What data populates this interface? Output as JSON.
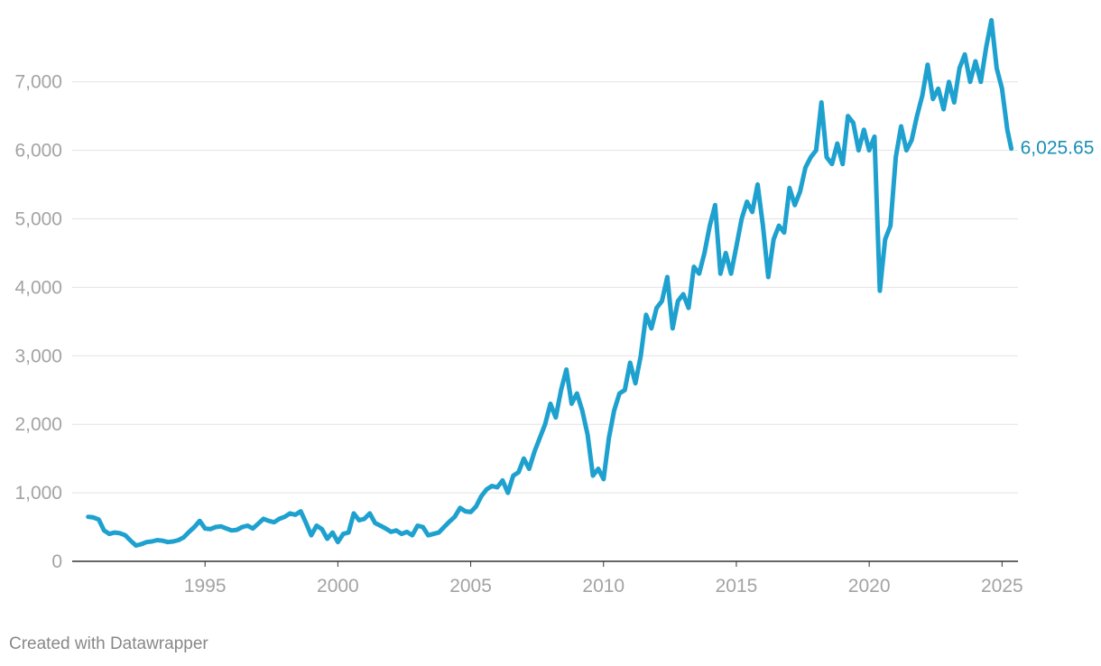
{
  "chart_data": {
    "type": "line",
    "title": "",
    "xlabel": "",
    "ylabel": "",
    "xlim": [
      1990.0,
      2025.6
    ],
    "ylim": [
      0,
      7500
    ],
    "grid": "horizontal",
    "y_ticks": [
      0,
      1000,
      2000,
      3000,
      4000,
      5000,
      6000,
      7000
    ],
    "y_tick_labels": [
      "0",
      "1,000",
      "2,000",
      "3,000",
      "4,000",
      "5,000",
      "6,000",
      "7,000"
    ],
    "x_ticks": [
      1995,
      2000,
      2005,
      2010,
      2015,
      2020,
      2025
    ],
    "x_tick_labels": [
      "1995",
      "2000",
      "2005",
      "2010",
      "2015",
      "2020",
      "2025"
    ],
    "series": [
      {
        "color": "#1ea1cf",
        "points": [
          [
            1990.6,
            650
          ],
          [
            1990.8,
            640
          ],
          [
            1991.0,
            610
          ],
          [
            1991.2,
            450
          ],
          [
            1991.4,
            400
          ],
          [
            1991.6,
            420
          ],
          [
            1991.8,
            410
          ],
          [
            1992.0,
            380
          ],
          [
            1992.2,
            300
          ],
          [
            1992.4,
            230
          ],
          [
            1992.6,
            250
          ],
          [
            1992.8,
            280
          ],
          [
            1993.0,
            290
          ],
          [
            1993.2,
            310
          ],
          [
            1993.4,
            300
          ],
          [
            1993.6,
            280
          ],
          [
            1993.8,
            290
          ],
          [
            1994.0,
            310
          ],
          [
            1994.2,
            350
          ],
          [
            1994.4,
            430
          ],
          [
            1994.6,
            500
          ],
          [
            1994.8,
            590
          ],
          [
            1995.0,
            480
          ],
          [
            1995.2,
            470
          ],
          [
            1995.4,
            500
          ],
          [
            1995.6,
            510
          ],
          [
            1995.8,
            480
          ],
          [
            1996.0,
            450
          ],
          [
            1996.2,
            460
          ],
          [
            1996.4,
            500
          ],
          [
            1996.6,
            520
          ],
          [
            1996.8,
            480
          ],
          [
            1997.0,
            550
          ],
          [
            1997.2,
            620
          ],
          [
            1997.4,
            590
          ],
          [
            1997.6,
            570
          ],
          [
            1997.8,
            620
          ],
          [
            1998.0,
            650
          ],
          [
            1998.2,
            700
          ],
          [
            1998.4,
            680
          ],
          [
            1998.6,
            730
          ],
          [
            1998.8,
            560
          ],
          [
            1999.0,
            380
          ],
          [
            1999.2,
            520
          ],
          [
            1999.4,
            470
          ],
          [
            1999.6,
            330
          ],
          [
            1999.8,
            420
          ],
          [
            2000.0,
            280
          ],
          [
            2000.2,
            400
          ],
          [
            2000.4,
            420
          ],
          [
            2000.6,
            700
          ],
          [
            2000.8,
            600
          ],
          [
            2001.0,
            620
          ],
          [
            2001.2,
            700
          ],
          [
            2001.4,
            560
          ],
          [
            2001.6,
            520
          ],
          [
            2001.8,
            480
          ],
          [
            2002.0,
            430
          ],
          [
            2002.2,
            450
          ],
          [
            2002.4,
            400
          ],
          [
            2002.6,
            430
          ],
          [
            2002.8,
            380
          ],
          [
            2003.0,
            520
          ],
          [
            2003.2,
            500
          ],
          [
            2003.4,
            380
          ],
          [
            2003.6,
            400
          ],
          [
            2003.8,
            420
          ],
          [
            2004.0,
            500
          ],
          [
            2004.2,
            580
          ],
          [
            2004.4,
            650
          ],
          [
            2004.6,
            780
          ],
          [
            2004.8,
            730
          ],
          [
            2005.0,
            720
          ],
          [
            2005.2,
            800
          ],
          [
            2005.4,
            950
          ],
          [
            2005.6,
            1050
          ],
          [
            2005.8,
            1100
          ],
          [
            2006.0,
            1080
          ],
          [
            2006.2,
            1180
          ],
          [
            2006.4,
            1000
          ],
          [
            2006.6,
            1250
          ],
          [
            2006.8,
            1300
          ],
          [
            2007.0,
            1500
          ],
          [
            2007.2,
            1350
          ],
          [
            2007.4,
            1600
          ],
          [
            2007.6,
            1800
          ],
          [
            2007.8,
            2000
          ],
          [
            2008.0,
            2300
          ],
          [
            2008.2,
            2100
          ],
          [
            2008.4,
            2500
          ],
          [
            2008.6,
            2800
          ],
          [
            2008.8,
            2300
          ],
          [
            2009.0,
            2450
          ],
          [
            2009.2,
            2200
          ],
          [
            2009.4,
            1850
          ],
          [
            2009.6,
            1250
          ],
          [
            2009.8,
            1350
          ],
          [
            2010.0,
            1200
          ],
          [
            2010.2,
            1800
          ],
          [
            2010.4,
            2200
          ],
          [
            2010.6,
            2450
          ],
          [
            2010.8,
            2500
          ],
          [
            2011.0,
            2900
          ],
          [
            2011.2,
            2600
          ],
          [
            2011.4,
            3000
          ],
          [
            2011.6,
            3600
          ],
          [
            2011.8,
            3400
          ],
          [
            2012.0,
            3700
          ],
          [
            2012.2,
            3800
          ],
          [
            2012.4,
            4150
          ],
          [
            2012.6,
            3400
          ],
          [
            2012.8,
            3800
          ],
          [
            2013.0,
            3900
          ],
          [
            2013.2,
            3700
          ],
          [
            2013.4,
            4300
          ],
          [
            2013.6,
            4200
          ],
          [
            2013.8,
            4500
          ],
          [
            2014.0,
            4900
          ],
          [
            2014.2,
            5200
          ],
          [
            2014.4,
            4200
          ],
          [
            2014.6,
            4500
          ],
          [
            2014.8,
            4200
          ],
          [
            2015.0,
            4600
          ],
          [
            2015.2,
            5000
          ],
          [
            2015.4,
            5250
          ],
          [
            2015.6,
            5100
          ],
          [
            2015.8,
            5500
          ],
          [
            2016.0,
            4900
          ],
          [
            2016.2,
            4150
          ],
          [
            2016.4,
            4700
          ],
          [
            2016.6,
            4900
          ],
          [
            2016.8,
            4800
          ],
          [
            2017.0,
            5450
          ],
          [
            2017.2,
            5200
          ],
          [
            2017.4,
            5400
          ],
          [
            2017.6,
            5750
          ],
          [
            2017.8,
            5900
          ],
          [
            2018.0,
            6000
          ],
          [
            2018.2,
            6700
          ],
          [
            2018.4,
            5900
          ],
          [
            2018.6,
            5800
          ],
          [
            2018.8,
            6100
          ],
          [
            2019.0,
            5800
          ],
          [
            2019.2,
            6500
          ],
          [
            2019.4,
            6400
          ],
          [
            2019.6,
            6000
          ],
          [
            2019.8,
            6300
          ],
          [
            2020.0,
            6000
          ],
          [
            2020.2,
            6200
          ],
          [
            2020.4,
            3950
          ],
          [
            2020.6,
            4700
          ],
          [
            2020.8,
            4900
          ],
          [
            2021.0,
            5900
          ],
          [
            2021.2,
            6350
          ],
          [
            2021.4,
            6000
          ],
          [
            2021.6,
            6150
          ],
          [
            2021.8,
            6500
          ],
          [
            2022.0,
            6800
          ],
          [
            2022.2,
            7250
          ],
          [
            2022.4,
            6750
          ],
          [
            2022.6,
            6900
          ],
          [
            2022.8,
            6600
          ],
          [
            2023.0,
            7000
          ],
          [
            2023.2,
            6700
          ],
          [
            2023.4,
            7200
          ],
          [
            2023.6,
            7400
          ],
          [
            2023.8,
            7000
          ],
          [
            2024.0,
            7300
          ],
          [
            2024.2,
            7000
          ],
          [
            2024.4,
            7500
          ],
          [
            2024.6,
            7900
          ],
          [
            2024.8,
            7200
          ],
          [
            2025.0,
            6900
          ],
          [
            2025.2,
            6300
          ],
          [
            2025.35,
            6025.65
          ]
        ]
      }
    ],
    "end_label": "6,025.65"
  },
  "footer": {
    "credit": "Created with Datawrapper"
  }
}
